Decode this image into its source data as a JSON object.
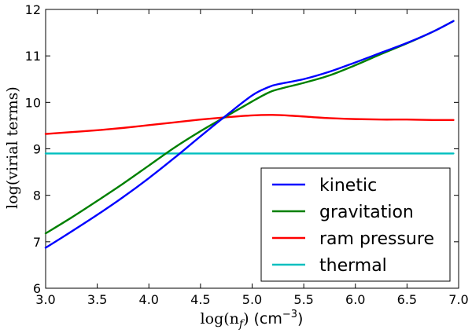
{
  "chart_data": {
    "type": "line",
    "xlabel": "log(n_f) (cm^-3)",
    "xlabel_parts": {
      "math": "log(n",
      "sub": "f",
      "close": ")",
      "unit": "(cm",
      "exp": "−3",
      "unit_close": ")"
    },
    "ylabel": "log(virial terms)",
    "xlim": [
      3.0,
      7.0
    ],
    "ylim": [
      6,
      12
    ],
    "x_ticks": [
      3.0,
      3.5,
      4.0,
      4.5,
      5.0,
      5.5,
      6.0,
      6.5,
      7.0
    ],
    "x_tick_labels": [
      "3.0",
      "3.5",
      "4.0",
      "4.5",
      "5.0",
      "5.5",
      "6.0",
      "6.5",
      "7.0"
    ],
    "y_ticks": [
      6,
      7,
      8,
      9,
      10,
      11,
      12
    ],
    "y_tick_labels": [
      "6",
      "7",
      "8",
      "9",
      "10",
      "11",
      "12"
    ],
    "grid": false,
    "legend_position": "lower-right",
    "series": [
      {
        "name": "kinetic",
        "color": "#0000ff",
        "x": [
          3.0,
          3.25,
          3.5,
          3.75,
          4.0,
          4.25,
          4.5,
          4.75,
          5.0,
          5.15,
          5.25,
          5.5,
          5.75,
          6.0,
          6.25,
          6.5,
          6.75,
          6.95
        ],
        "y": [
          6.87,
          7.22,
          7.58,
          7.96,
          8.37,
          8.81,
          9.27,
          9.72,
          10.15,
          10.32,
          10.39,
          10.5,
          10.66,
          10.86,
          11.07,
          11.28,
          11.52,
          11.75
        ]
      },
      {
        "name": "gravitation",
        "color": "#008000",
        "x": [
          3.0,
          3.25,
          3.5,
          3.75,
          4.0,
          4.25,
          4.5,
          4.75,
          5.0,
          5.15,
          5.25,
          5.5,
          5.75,
          6.0,
          6.25,
          6.5,
          6.75,
          6.95
        ],
        "y": [
          7.18,
          7.52,
          7.88,
          8.25,
          8.64,
          9.03,
          9.38,
          9.7,
          10.02,
          10.2,
          10.28,
          10.42,
          10.58,
          10.8,
          11.04,
          11.27,
          11.52,
          11.75
        ]
      },
      {
        "name": "ram pressure",
        "color": "#ff0000",
        "x": [
          3.0,
          3.25,
          3.5,
          3.75,
          4.0,
          4.25,
          4.5,
          4.75,
          5.0,
          5.2,
          5.4,
          5.6,
          5.75,
          6.0,
          6.25,
          6.5,
          6.75,
          6.95
        ],
        "y": [
          9.32,
          9.36,
          9.4,
          9.45,
          9.51,
          9.57,
          9.63,
          9.68,
          9.72,
          9.73,
          9.71,
          9.68,
          9.66,
          9.64,
          9.63,
          9.63,
          9.62,
          9.62
        ]
      },
      {
        "name": "thermal",
        "color": "#00bfbf",
        "x": [
          3.0,
          6.95
        ],
        "y": [
          8.9,
          8.9
        ]
      }
    ]
  }
}
